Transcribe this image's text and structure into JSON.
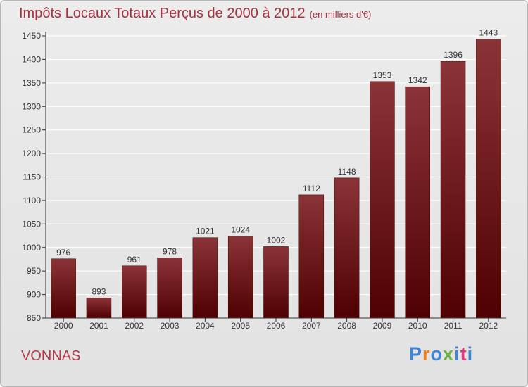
{
  "header": {
    "title": "Impôts Locaux Totaux Perçus de 2000 à 2012",
    "subtitle": "(en milliers d'€)"
  },
  "footer": {
    "commune": "VONNAS",
    "logo_text": "Proxiti"
  },
  "colors": {
    "title": "#a5333f",
    "bar_top": "#8b3438",
    "bar_bottom": "#4f0000",
    "grid": "#ffffff",
    "axis": "#333333",
    "logo_letters": [
      "#3f86d6",
      "#ef7f1a",
      "#3f86d6",
      "#6db33f",
      "#3f86d6",
      "#e2357a",
      "#3f86d6"
    ]
  },
  "chart_data": {
    "type": "bar",
    "title": "Impôts Locaux Totaux Perçus de 2000 à 2012",
    "subtitle": "(en milliers d'€)",
    "xlabel": "",
    "ylabel": "",
    "categories": [
      "2000",
      "2001",
      "2002",
      "2003",
      "2004",
      "2005",
      "2006",
      "2007",
      "2008",
      "2009",
      "2010",
      "2011",
      "2012"
    ],
    "values": [
      976,
      893,
      961,
      978,
      1021,
      1024,
      1002,
      1112,
      1148,
      1353,
      1342,
      1396,
      1443
    ],
    "ylim": [
      850,
      1450
    ],
    "yticks": [
      850,
      900,
      950,
      1000,
      1050,
      1100,
      1150,
      1200,
      1250,
      1300,
      1350,
      1400,
      1450
    ],
    "grid": true,
    "data_labels": true
  }
}
